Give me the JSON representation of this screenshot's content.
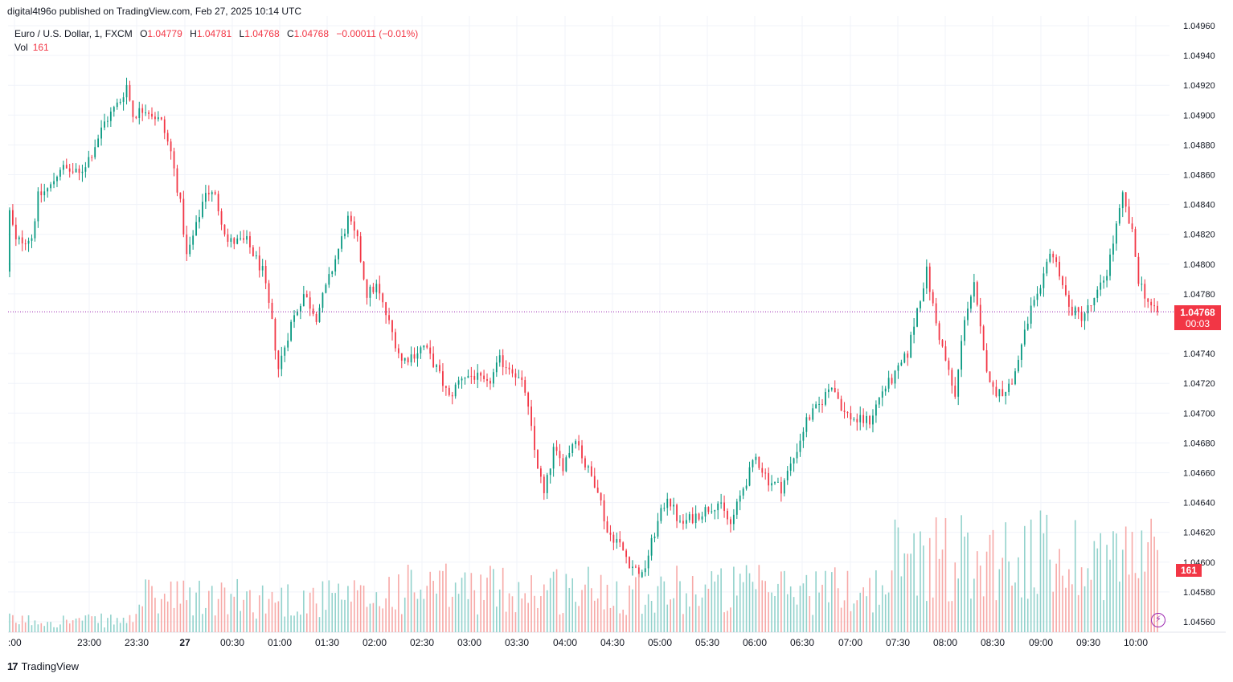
{
  "header": {
    "published_line": "digital4t96o published on TradingView.com, Feb 27, 2025 10:14 UTC"
  },
  "legend": {
    "symbol": "Euro / U.S. Dollar, 1, FXCM",
    "open_label": "O",
    "open_value": "1.04779",
    "high_label": "H",
    "high_value": "1.04781",
    "low_label": "L",
    "low_value": "1.04768",
    "close_label": "C",
    "close_value": "1.04768",
    "change": "−0.00011 (−0.01%)",
    "vol_label": "Vol",
    "vol_value": "161"
  },
  "price_tag": {
    "price": "1.04768",
    "timer": "00:03"
  },
  "vol_tag": {
    "value": "161"
  },
  "footer": {
    "logo": "17",
    "brand": "TradingView"
  },
  "colors": {
    "up": "#089981",
    "down": "#f23645",
    "up_vol": "#92d2cc",
    "down_vol": "#f7a9a7",
    "grid": "#f0f3fa",
    "last_line": "#9c27b0"
  },
  "chart_data": {
    "type": "candlestick",
    "symbol": "Euro / U.S. Dollar",
    "interval": "1",
    "ylim": [
      1.0455,
      1.0497
    ],
    "y_ticks": [
      "1.04960",
      "1.04940",
      "1.04920",
      "1.04900",
      "1.04880",
      "1.04860",
      "1.04840",
      "1.04820",
      "1.04800",
      "1.04780",
      "1.04740",
      "1.04720",
      "1.04700",
      "1.04680",
      "1.04660",
      "1.04640",
      "1.04620",
      "1.04600",
      "1.04580",
      "1.04560"
    ],
    "x_ticks": [
      ":00",
      "23:00",
      "23:30",
      "27",
      "00:30",
      "01:00",
      "01:30",
      "02:00",
      "02:30",
      "03:00",
      "03:30",
      "04:00",
      "04:30",
      "05:00",
      "05:30",
      "06:00",
      "06:30",
      "07:00",
      "07:30",
      "08:00",
      "08:30",
      "09:00",
      "09:30",
      "10:00"
    ],
    "last_price": 1.04768,
    "price_path": [
      [
        0,
        1.04795
      ],
      [
        1,
        1.04835
      ],
      [
        3,
        1.04815
      ],
      [
        8,
        1.04818
      ],
      [
        10,
        1.04845
      ],
      [
        14,
        1.04852
      ],
      [
        17,
        1.04865
      ],
      [
        23,
        1.0486
      ],
      [
        27,
        1.04875
      ],
      [
        31,
        1.04895
      ],
      [
        36,
        1.0491
      ],
      [
        38,
        1.0492
      ],
      [
        40,
        1.049
      ],
      [
        44,
        1.04905
      ],
      [
        49,
        1.04895
      ],
      [
        52,
        1.04875
      ],
      [
        55,
        1.0484
      ],
      [
        57,
        1.04805
      ],
      [
        60,
        1.04825
      ],
      [
        63,
        1.0485
      ],
      [
        66,
        1.04845
      ],
      [
        70,
        1.04815
      ],
      [
        76,
        1.04815
      ],
      [
        81,
        1.04795
      ],
      [
        84,
        1.0476
      ],
      [
        86,
        1.0473
      ],
      [
        90,
        1.0476
      ],
      [
        94,
        1.0478
      ],
      [
        98,
        1.04765
      ],
      [
        102,
        1.0479
      ],
      [
        105,
        1.0481
      ],
      [
        108,
        1.0483
      ],
      [
        111,
        1.04815
      ],
      [
        114,
        1.0478
      ],
      [
        117,
        1.04785
      ],
      [
        121,
        1.0476
      ],
      [
        125,
        1.04735
      ],
      [
        129,
        1.0474
      ],
      [
        132,
        1.04745
      ],
      [
        136,
        1.0473
      ],
      [
        140,
        1.0471
      ],
      [
        144,
        1.04725
      ],
      [
        148,
        1.04725
      ],
      [
        152,
        1.04718
      ],
      [
        156,
        1.04735
      ],
      [
        160,
        1.0473
      ],
      [
        164,
        1.04715
      ],
      [
        167,
        1.04675
      ],
      [
        170,
        1.04645
      ],
      [
        173,
        1.04675
      ],
      [
        176,
        1.04665
      ],
      [
        180,
        1.04685
      ],
      [
        183,
        1.04665
      ],
      [
        187,
        1.0465
      ],
      [
        190,
        1.0462
      ],
      [
        193,
        1.04615
      ],
      [
        197,
        1.046
      ],
      [
        201,
        1.0459
      ],
      [
        205,
        1.0462
      ],
      [
        209,
        1.04645
      ],
      [
        213,
        1.04625
      ],
      [
        217,
        1.0463
      ],
      [
        221,
        1.04635
      ],
      [
        225,
        1.0464
      ],
      [
        229,
        1.04625
      ],
      [
        233,
        1.0465
      ],
      [
        237,
        1.0467
      ],
      [
        241,
        1.04655
      ],
      [
        245,
        1.0465
      ],
      [
        249,
        1.0467
      ],
      [
        253,
        1.04695
      ],
      [
        257,
        1.04705
      ],
      [
        261,
        1.0472
      ],
      [
        265,
        1.047
      ],
      [
        269,
        1.04695
      ],
      [
        273,
        1.04695
      ],
      [
        277,
        1.04715
      ],
      [
        281,
        1.04725
      ],
      [
        285,
        1.0474
      ],
      [
        288,
        1.0477
      ],
      [
        291,
        1.04795
      ],
      [
        294,
        1.0476
      ],
      [
        297,
        1.04735
      ],
      [
        300,
        1.0471
      ],
      [
        303,
        1.04765
      ],
      [
        306,
        1.04785
      ],
      [
        309,
        1.0474
      ],
      [
        312,
        1.04715
      ],
      [
        315,
        1.04715
      ],
      [
        318,
        1.0472
      ],
      [
        321,
        1.04745
      ],
      [
        324,
        1.0477
      ],
      [
        327,
        1.0478
      ],
      [
        330,
        1.0481
      ],
      [
        333,
        1.04795
      ],
      [
        336,
        1.0477
      ],
      [
        340,
        1.04765
      ],
      [
        344,
        1.04775
      ],
      [
        348,
        1.04795
      ],
      [
        351,
        1.04825
      ],
      [
        353,
        1.04845
      ],
      [
        356,
        1.0482
      ],
      [
        358,
        1.0479
      ],
      [
        361,
        1.04775
      ],
      [
        363,
        1.04768
      ]
    ],
    "n_bars": 364,
    "volume_ylim": [
      0,
      400
    ]
  }
}
